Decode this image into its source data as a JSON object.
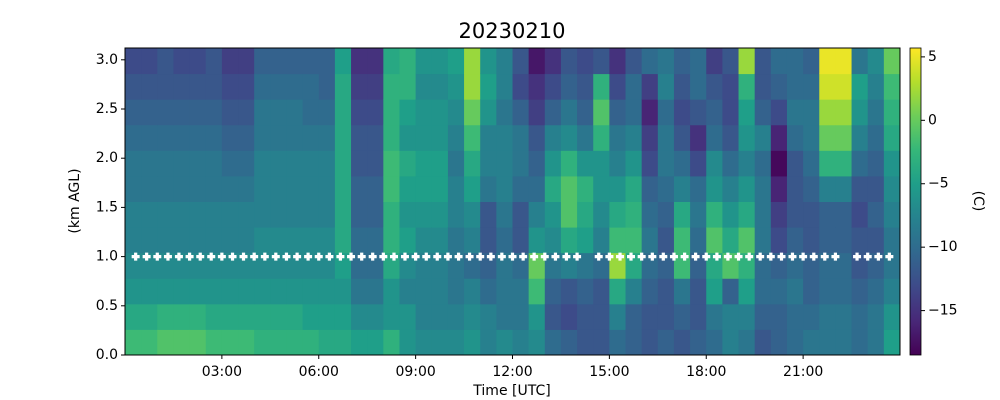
{
  "chart_data": {
    "type": "heatmap",
    "title": "20230210",
    "xlabel": "Time [UTC]",
    "ylabel": "(km AGL)",
    "colorbar_label": "(C)",
    "colormap": "viridis",
    "xlim": [
      0,
      24
    ],
    "ylim": [
      0,
      3.12
    ],
    "clim": [
      -18.5,
      5.7
    ],
    "xticks": [
      {
        "value": 3,
        "label": "03:00"
      },
      {
        "value": 6,
        "label": "06:00"
      },
      {
        "value": 9,
        "label": "09:00"
      },
      {
        "value": 12,
        "label": "12:00"
      },
      {
        "value": 15,
        "label": "15:00"
      },
      {
        "value": 18,
        "label": "18:00"
      },
      {
        "value": 21,
        "label": "21:00"
      }
    ],
    "yticks": [
      {
        "value": 0,
        "label": "0.0"
      },
      {
        "value": 0.5,
        "label": "0.5"
      },
      {
        "value": 1,
        "label": "1.0"
      },
      {
        "value": 1.5,
        "label": "1.5"
      },
      {
        "value": 2,
        "label": "2.0"
      },
      {
        "value": 2.5,
        "label": "2.5"
      },
      {
        "value": 3,
        "label": "3.0"
      }
    ],
    "cticks": [
      {
        "value": 5,
        "label": "5"
      },
      {
        "value": 0,
        "label": "0"
      },
      {
        "value": -5,
        "label": "−5"
      },
      {
        "value": -10,
        "label": "−10"
      },
      {
        "value": -15,
        "label": "−15"
      }
    ],
    "x_edges": [
      0,
      0.5,
      1,
      1.5,
      2,
      2.5,
      3,
      3.5,
      4,
      4.5,
      5,
      5.5,
      6,
      6.5,
      7,
      7.5,
      8,
      8.5,
      9,
      9.5,
      10,
      10.5,
      11,
      11.5,
      12,
      12.5,
      13,
      13.5,
      14,
      14.5,
      15,
      15.5,
      16,
      16.5,
      17,
      17.5,
      18,
      18.5,
      19,
      19.5,
      20,
      20.5,
      21,
      21.5,
      22,
      22.5,
      23,
      23.5,
      24
    ],
    "y_edges": [
      0,
      0.26,
      0.52,
      0.78,
      1.04,
      1.3,
      1.56,
      1.82,
      2.08,
      2.34,
      2.6,
      2.86,
      3.12
    ],
    "z": [
      [
        -2,
        -4,
        -6,
        -7,
        -8,
        -8,
        -9,
        -9,
        -10,
        -11,
        -12,
        -13
      ],
      [
        -2,
        -4,
        -6,
        -7,
        -8,
        -8,
        -9,
        -9,
        -10,
        -11,
        -12,
        -13
      ],
      [
        -1,
        -3,
        -6,
        -7,
        -8,
        -8,
        -9,
        -9,
        -10,
        -11,
        -12,
        -12
      ],
      [
        -1,
        -3,
        -6,
        -7,
        -8,
        -8,
        -9,
        -9,
        -10,
        -11,
        -12,
        -13
      ],
      [
        -1,
        -3,
        -6,
        -7,
        -8,
        -8,
        -9,
        -9,
        -10,
        -11,
        -12,
        -13
      ],
      [
        -2,
        -4,
        -6,
        -7,
        -8,
        -8,
        -9,
        -9,
        -10,
        -11,
        -12,
        -12
      ],
      [
        -2,
        -4,
        -6,
        -7,
        -8,
        -8,
        -9,
        -10,
        -11,
        -12,
        -13,
        -14
      ],
      [
        -2,
        -4,
        -6,
        -7,
        -8,
        -8,
        -9,
        -10,
        -11,
        -12,
        -13,
        -14
      ],
      [
        -3,
        -4,
        -6,
        -7,
        -7,
        -8,
        -8,
        -8,
        -9,
        -9,
        -10,
        -11
      ],
      [
        -3,
        -4,
        -6,
        -7,
        -7,
        -8,
        -8,
        -8,
        -9,
        -9,
        -10,
        -11
      ],
      [
        -3,
        -4,
        -6,
        -7,
        -7,
        -8,
        -8,
        -8,
        -9,
        -9,
        -10,
        -11
      ],
      [
        -3,
        -5,
        -6,
        -7,
        -7,
        -8,
        -8,
        -8,
        -9,
        -10,
        -10,
        -11
      ],
      [
        -4,
        -5,
        -6,
        -7,
        -7,
        -8,
        -8,
        -8,
        -9,
        -10,
        -11,
        -11
      ],
      [
        -4,
        -5,
        -6,
        -5,
        -4,
        -4,
        -4,
        -4,
        -4,
        -4,
        -4,
        -5
      ],
      [
        -5,
        -7,
        -9,
        -10,
        -10,
        -11,
        -11,
        -12,
        -12,
        -13,
        -14,
        -15
      ],
      [
        -5,
        -7,
        -9,
        -10,
        -10,
        -11,
        -11,
        -12,
        -12,
        -13,
        -14,
        -15
      ],
      [
        -3,
        -6,
        -6,
        -4,
        -3,
        -3,
        -2,
        -2,
        -3,
        -3,
        -3,
        -4
      ],
      [
        -6,
        -6,
        -8,
        -7,
        -5,
        -6,
        -5,
        -4,
        -6,
        -5,
        -3,
        -3
      ],
      [
        -7,
        -8,
        -8,
        -8,
        -7,
        -6,
        -5,
        -5,
        -6,
        -6,
        -7,
        -6
      ],
      [
        -7,
        -8,
        -8,
        -8,
        -7,
        -6,
        -5,
        -5,
        -6,
        -6,
        -7,
        -6
      ],
      [
        -7,
        -8,
        -9,
        -9,
        -9,
        -8,
        -8,
        -9,
        -8,
        -7,
        -6,
        -5
      ],
      [
        -6,
        -7,
        -8,
        -10,
        -8,
        -7,
        -5,
        -4,
        -2,
        0,
        2,
        2
      ],
      [
        -8,
        -8,
        -10,
        -11,
        -12,
        -12,
        -9,
        -8,
        -8,
        -6,
        -5,
        -6
      ],
      [
        -7,
        -9,
        -9,
        -9,
        -10,
        -9,
        -8,
        -8,
        -8,
        -9,
        -8,
        -8
      ],
      [
        -8,
        -9,
        -9,
        -10,
        -12,
        -12,
        -10,
        -9,
        -9,
        -11,
        -13,
        -12
      ],
      [
        -7,
        -6,
        -2,
        0,
        -6,
        -8,
        -10,
        -11,
        -12,
        -14,
        -15,
        -17
      ],
      [
        -10,
        -12,
        -11,
        -9,
        -7,
        -6,
        -4,
        -6,
        -8,
        -11,
        -13,
        -15
      ],
      [
        -11,
        -13,
        -12,
        -8,
        -4,
        -1,
        -1,
        -3,
        -7,
        -9,
        -11,
        -12
      ],
      [
        -12,
        -12,
        -11,
        -9,
        -5,
        -4,
        -3,
        -6,
        -9,
        -11,
        -12,
        -13
      ],
      [
        -12,
        -12,
        -12,
        -10,
        -8,
        -7,
        -6,
        -6,
        -3,
        -1,
        -3,
        -12
      ],
      [
        -10,
        -8,
        -4,
        2,
        -2,
        -4,
        -6,
        -8,
        -9,
        -11,
        -13,
        -15
      ],
      [
        -11,
        -11,
        -8,
        -4,
        -2,
        -3,
        -4,
        -6,
        -8,
        -10,
        -10,
        -12
      ],
      [
        -12,
        -12,
        -11,
        -10,
        -9,
        -10,
        -11,
        -13,
        -14,
        -16,
        -14,
        -10
      ],
      [
        -11,
        -12,
        -12,
        -11,
        -12,
        -11,
        -10,
        -9,
        -9,
        -10,
        -8,
        -9
      ],
      [
        -12,
        -11,
        -9,
        -2,
        -2,
        -4,
        -8,
        -10,
        -12,
        -13,
        -12,
        -11
      ],
      [
        -11,
        -12,
        -12,
        -11,
        -10,
        -9,
        -10,
        -13,
        -15,
        -12,
        -10,
        -10
      ],
      [
        -10,
        -9,
        -5,
        -4,
        -1,
        -3,
        -6,
        -7,
        -10,
        -11,
        -12,
        -14
      ],
      [
        -8,
        -8,
        -11,
        -1,
        -4,
        -6,
        -8,
        -10,
        -12,
        -13,
        -13,
        -12
      ],
      [
        -9,
        -8,
        -5,
        -3,
        -1,
        -4,
        -6,
        -8,
        -6,
        -5,
        -3,
        2
      ],
      [
        -12,
        -11,
        -10,
        -10,
        -9,
        -9,
        -9,
        -10,
        -8,
        -11,
        -12,
        -12
      ],
      [
        -11,
        -11,
        -10,
        -11,
        -13,
        -14,
        -16,
        -18,
        -16,
        -13,
        -11,
        -10
      ],
      [
        -10,
        -10,
        -9,
        -10,
        -11,
        -12,
        -12,
        -12,
        -10,
        -9,
        -10,
        -10
      ],
      [
        -9,
        -10,
        -11,
        -11,
        -12,
        -12,
        -11,
        -10,
        -9,
        -9,
        -10,
        -11
      ],
      [
        -9,
        -9,
        -10,
        -10,
        -11,
        -11,
        -8,
        -3,
        0,
        2,
        4,
        5
      ],
      [
        -9,
        -9,
        -10,
        -10,
        -11,
        -11,
        -8,
        -3,
        0,
        2,
        4,
        5
      ],
      [
        -10,
        -10,
        -11,
        -12,
        -12,
        -13,
        -12,
        -10,
        -8,
        -6,
        -5,
        -9
      ],
      [
        -9,
        -9,
        -10,
        -11,
        -12,
        -11,
        -12,
        -11,
        -10,
        -9,
        -8,
        -7
      ],
      [
        -5,
        -6,
        -8,
        -9,
        -9,
        -8,
        -7,
        -6,
        -4,
        -3,
        -2,
        0
      ]
    ],
    "markers": {
      "color": "#ffffff",
      "x": [
        0.33,
        0.67,
        1,
        1.33,
        1.67,
        2,
        2.33,
        2.67,
        3,
        3.33,
        3.67,
        4,
        4.33,
        4.67,
        5,
        5.33,
        5.67,
        6,
        6.33,
        6.67,
        7,
        7.33,
        7.67,
        8,
        8.33,
        8.67,
        9,
        9.33,
        9.67,
        10,
        10.33,
        10.67,
        11,
        11.33,
        11.67,
        12,
        12.33,
        12.67,
        13,
        13.33,
        13.67,
        14,
        14.67,
        15,
        15.33,
        15.67,
        16,
        16.33,
        16.67,
        17,
        17.33,
        17.67,
        18,
        18.33,
        18.67,
        19,
        19.33,
        19.67,
        20,
        20.33,
        20.67,
        21,
        21.33,
        21.67,
        22,
        22.67,
        23,
        23.33,
        23.67
      ],
      "y": [
        1,
        1,
        1,
        1,
        1,
        1,
        1,
        1,
        1,
        1,
        1,
        1,
        1,
        1,
        1,
        1,
        1,
        1,
        1,
        1,
        1,
        1,
        1,
        1,
        1,
        1,
        1,
        1,
        1,
        1,
        1,
        1,
        1,
        1,
        1,
        1,
        1,
        1,
        1,
        1,
        1,
        1,
        1,
        1,
        1,
        1,
        1,
        1,
        1,
        1,
        1,
        1,
        1,
        1,
        1,
        1,
        1,
        1,
        1,
        1,
        1,
        1,
        1,
        1,
        1,
        1,
        1,
        1,
        1
      ]
    }
  }
}
